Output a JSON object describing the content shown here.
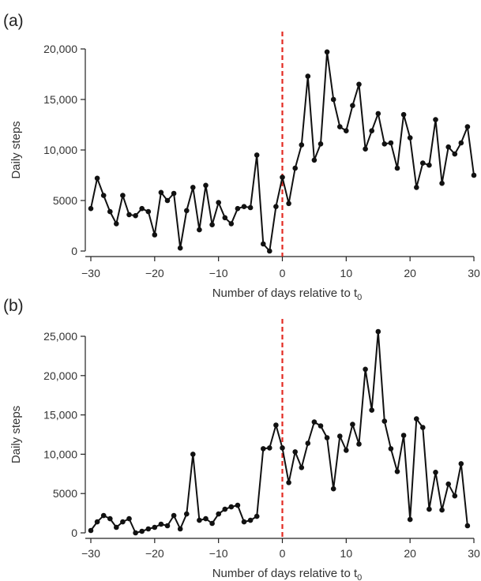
{
  "chart_data": [
    {
      "panel_label": "(a)",
      "type": "line",
      "xlabel": "Number of days relative to t",
      "xlabel_subscript": "0",
      "ylabel": "Daily steps",
      "xlim": [
        -30,
        30
      ],
      "ylim": [
        0,
        20000
      ],
      "xticks": [
        -30,
        -20,
        -10,
        0,
        10,
        20,
        30
      ],
      "xtick_labels": [
        "−30",
        "−20",
        "−10",
        "0",
        "10",
        "20",
        "30"
      ],
      "yticks": [
        0,
        5000,
        10000,
        15000,
        20000
      ],
      "ytick_labels": [
        "0",
        "5000",
        "10,000",
        "15,000",
        "20,000"
      ],
      "reference_line_x": 0,
      "reference_line_color": "#e32a22",
      "line_color": "#111111",
      "grid": false,
      "series": [
        {
          "x": [
            -30,
            -29,
            -28,
            -27,
            -26,
            -25,
            -24,
            -23,
            -22,
            -21,
            -20,
            -19,
            -18,
            -17,
            -16,
            -15,
            -14,
            -13,
            -12,
            -11,
            -10,
            -9,
            -8,
            -7,
            -6,
            -5,
            -4,
            -3,
            -2,
            -1,
            0,
            1,
            2,
            3,
            4,
            5,
            6,
            7,
            8,
            9,
            10,
            11,
            12,
            13,
            14,
            15,
            16,
            17,
            18,
            19,
            20,
            21,
            22,
            23,
            24,
            25,
            26,
            27,
            28,
            29,
            30
          ],
          "y": [
            4200,
            7200,
            5500,
            3900,
            2700,
            5500,
            3600,
            3500,
            4200,
            3900,
            1600,
            5800,
            5000,
            5700,
            300,
            4000,
            6300,
            2100,
            6500,
            2600,
            4800,
            3300,
            2700,
            4200,
            4400,
            4300,
            9500,
            700,
            0,
            4400,
            7300,
            4700,
            8200,
            10500,
            17300,
            9000,
            10600,
            19700,
            15000,
            12300,
            11900,
            14400,
            16500,
            10100,
            11900,
            13600,
            10600,
            10700,
            8200,
            13500,
            11200,
            6300,
            8700,
            8500,
            13000,
            6700,
            10300,
            9600,
            10700,
            12300,
            7500
          ]
        }
      ]
    },
    {
      "panel_label": "(b)",
      "type": "line",
      "xlabel": "Number of days relative to t",
      "xlabel_subscript": "0",
      "ylabel": "Daily steps",
      "xlim": [
        -30,
        30
      ],
      "ylim": [
        0,
        25000
      ],
      "xticks": [
        -30,
        -20,
        -10,
        0,
        10,
        20,
        30
      ],
      "xtick_labels": [
        "−30",
        "−20",
        "−10",
        "0",
        "10",
        "20",
        "30"
      ],
      "yticks": [
        0,
        5000,
        10000,
        15000,
        20000,
        25000
      ],
      "ytick_labels": [
        "0",
        "5000",
        "10,000",
        "15,000",
        "20,000",
        "25,000"
      ],
      "reference_line_x": 0,
      "reference_line_color": "#e32a22",
      "line_color": "#111111",
      "grid": false,
      "series": [
        {
          "x": [
            -30,
            -29,
            -28,
            -27,
            -26,
            -25,
            -24,
            -23,
            -22,
            -21,
            -20,
            -19,
            -18,
            -17,
            -16,
            -15,
            -14,
            -13,
            -12,
            -11,
            -10,
            -9,
            -8,
            -7,
            -6,
            -5,
            -4,
            -3,
            -2,
            -1,
            0,
            1,
            2,
            3,
            4,
            5,
            6,
            7,
            8,
            9,
            10,
            11,
            12,
            13,
            14,
            15,
            16,
            17,
            18,
            19,
            20,
            21,
            22,
            23,
            24,
            25,
            26,
            27,
            28,
            29
          ],
          "y": [
            300,
            1400,
            2200,
            1800,
            700,
            1400,
            1800,
            0,
            200,
            500,
            700,
            1100,
            900,
            2200,
            500,
            2400,
            10000,
            1600,
            1800,
            1200,
            2400,
            3000,
            3300,
            3500,
            1400,
            1600,
            2100,
            10700,
            10800,
            13700,
            10800,
            6400,
            10300,
            8300,
            11400,
            14100,
            13600,
            12100,
            5600,
            12300,
            10500,
            13800,
            11300,
            20800,
            15600,
            25600,
            14200,
            10700,
            7800,
            12400,
            1700,
            14500,
            13400,
            3000,
            7700,
            2900,
            6200,
            4700,
            8800,
            900
          ]
        }
      ]
    }
  ]
}
